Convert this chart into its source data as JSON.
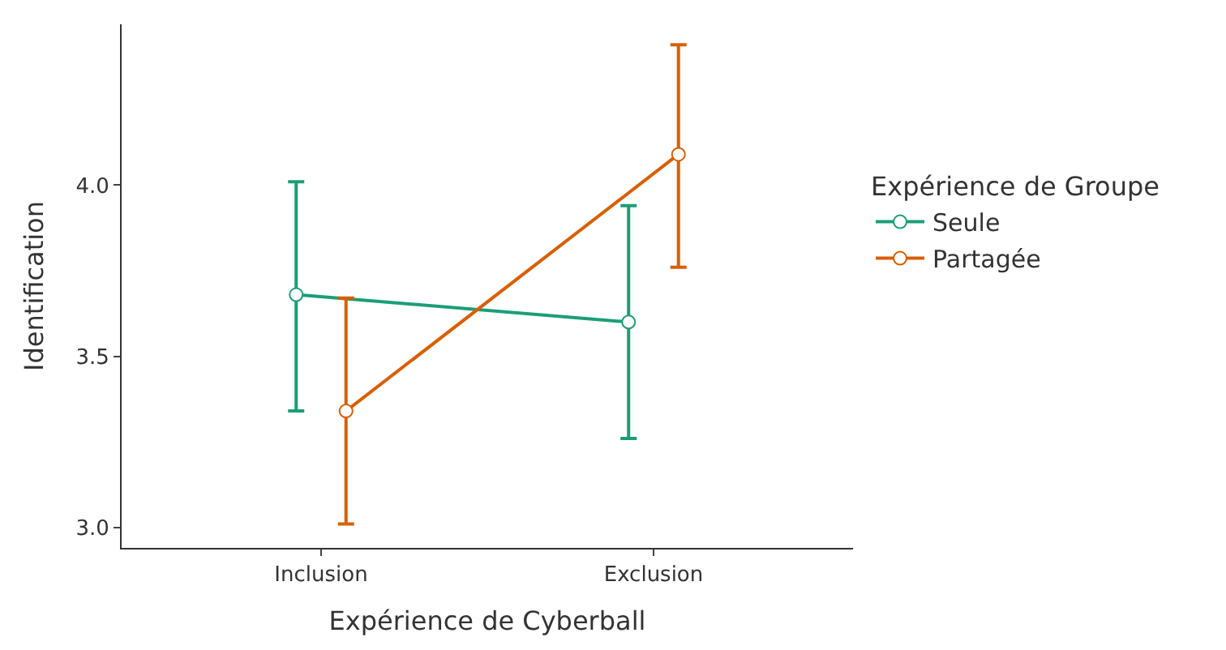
{
  "chart_data": {
    "type": "line",
    "xlabel": "Expérience de Cyberball",
    "ylabel": "Identification",
    "legend_title": "Expérience de Groupe",
    "categories": [
      "Inclusion",
      "Exclusion"
    ],
    "series": [
      {
        "name": "Seule",
        "color": "#1b9e77",
        "values": [
          3.68,
          3.6
        ],
        "errors": [
          [
            3.34,
            4.01
          ],
          [
            3.26,
            3.94
          ]
        ]
      },
      {
        "name": "Partagée",
        "color": "#d95f02",
        "values": [
          3.34,
          4.09
        ],
        "errors": [
          [
            3.01,
            3.67
          ],
          [
            3.76,
            4.41
          ]
        ]
      }
    ],
    "ylim": [
      2.94,
      4.47
    ],
    "yticks": [
      {
        "value": 3,
        "label": "3.0"
      },
      {
        "value": 3.5,
        "label": "3.5"
      },
      {
        "value": 4,
        "label": "4.0"
      }
    ],
    "legend": "right",
    "marker": "circle",
    "line_style": "solid"
  }
}
